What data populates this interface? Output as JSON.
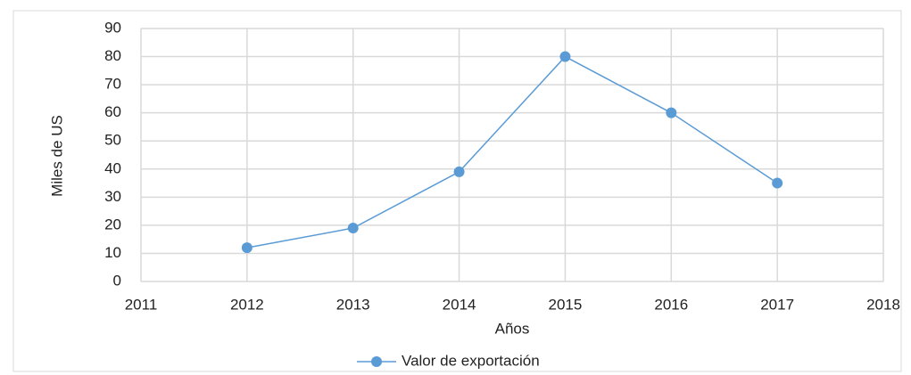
{
  "chart_data": {
    "type": "line",
    "x": [
      2012,
      2013,
      2014,
      2015,
      2016,
      2017
    ],
    "series": [
      {
        "name": "Valor de exportación",
        "color": "#5b9bd5",
        "values": [
          12,
          19,
          39,
          80,
          60,
          35
        ]
      }
    ],
    "xlabel": "Años",
    "ylabel": "Miles de US",
    "xlim": [
      2011,
      2018
    ],
    "xticks": [
      2011,
      2012,
      2013,
      2014,
      2015,
      2016,
      2017,
      2018
    ],
    "ylim": [
      0,
      90
    ],
    "yticks": [
      0,
      10,
      20,
      30,
      40,
      50,
      60,
      70,
      80,
      90
    ],
    "grid": true,
    "legend": "bottom"
  }
}
